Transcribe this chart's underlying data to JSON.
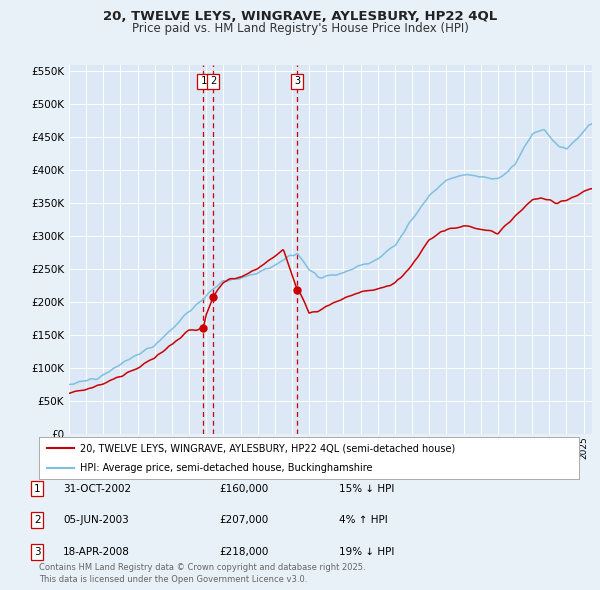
{
  "title_line1": "20, TWELVE LEYS, WINGRAVE, AYLESBURY, HP22 4QL",
  "title_line2": "Price paid vs. HM Land Registry's House Price Index (HPI)",
  "hpi_label": "HPI: Average price, semi-detached house, Buckinghamshire",
  "price_label": "20, TWELVE LEYS, WINGRAVE, AYLESBURY, HP22 4QL (semi-detached house)",
  "hpi_color": "#7fbfdf",
  "price_color": "#cc0000",
  "bg_color": "#e8f0f8",
  "plot_bg_color": "#dce8f5",
  "grid_color": "#ffffff",
  "vline_color": "#cc0000",
  "transactions": [
    {
      "label": "1",
      "date_str": "31-OCT-2002",
      "date_x": 2002.833,
      "price": 160000,
      "hpi_relation": "15% ↓ HPI"
    },
    {
      "label": "2",
      "date_str": "05-JUN-2003",
      "date_x": 2003.42,
      "price": 207000,
      "hpi_relation": "4% ↑ HPI"
    },
    {
      "label": "3",
      "date_str": "18-APR-2008",
      "date_x": 2008.29,
      "price": 218000,
      "hpi_relation": "19% ↓ HPI"
    }
  ],
  "footer": "Contains HM Land Registry data © Crown copyright and database right 2025.\nThis data is licensed under the Open Government Licence v3.0.",
  "ylim": [
    0,
    560000
  ],
  "xlim_start": 1995.3,
  "xlim_end": 2025.5
}
